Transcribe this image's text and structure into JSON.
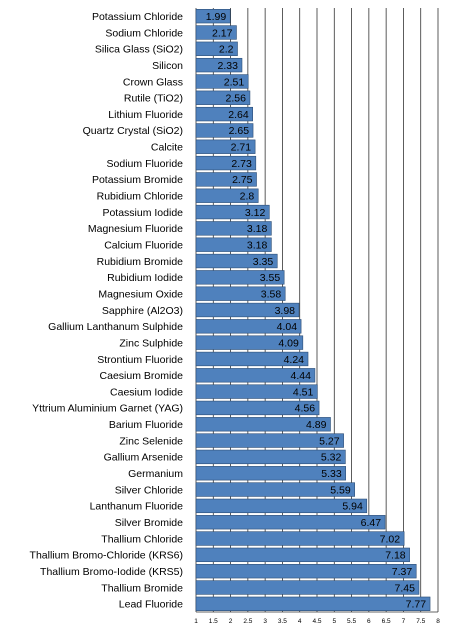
{
  "chart_data": {
    "type": "bar",
    "orientation": "horizontal",
    "categories": [
      "Potassium Chloride",
      "Sodium Chloride",
      "Silica Glass (SiO2)",
      "Silicon",
      "Crown Glass",
      "Rutile (TiO2)",
      "Lithium Fluoride",
      "Quartz Crystal (SiO2)",
      "Calcite",
      "Sodium Fluoride",
      "Potassium Bromide",
      "Rubidium Chloride",
      "Potassium Iodide",
      "Magnesium Fluoride",
      "Calcium Fluoride",
      "Rubidium Bromide",
      "Rubidium Iodide",
      "Magnesium Oxide",
      "Sapphire (Al2O3)",
      "Gallium Lanthanum Sulphide",
      "Zinc Sulphide",
      "Strontium Fluoride",
      "Caesium Bromide",
      "Caesium Iodide",
      "Yttrium Aluminium Garnet (YAG)",
      "Barium Fluoride",
      "Zinc Selenide",
      "Gallium Arsenide",
      "Germanium",
      "Silver Chloride",
      "Lanthanum Fluoride",
      "Silver Bromide",
      "Thallium Chloride",
      "Thallium Bromo-Chloride (KRS6)",
      "Thallium Bromo-Iodide (KRS5)",
      "Thallium Bromide",
      "Lead Fluoride"
    ],
    "values": [
      1.99,
      2.17,
      2.2,
      2.33,
      2.51,
      2.56,
      2.64,
      2.65,
      2.71,
      2.73,
      2.75,
      2.8,
      3.12,
      3.18,
      3.18,
      3.35,
      3.55,
      3.58,
      3.98,
      4.04,
      4.09,
      4.24,
      4.44,
      4.51,
      4.56,
      4.89,
      5.27,
      5.32,
      5.33,
      5.59,
      5.94,
      6.47,
      7.02,
      7.18,
      7.37,
      7.45,
      7.77
    ],
    "value_labels": [
      "1.99",
      "2.17",
      "2.2",
      "2.33",
      "2.51",
      "2.56",
      "2.64",
      "2.65",
      "2.71",
      "2.73",
      "2.75",
      "2.8",
      "3.12",
      "3.18",
      "3.18",
      "3.35",
      "3.55",
      "3.58",
      "3.98",
      "4.04",
      "4.09",
      "4.24",
      "4.44",
      "4.51",
      "4.56",
      "4.89",
      "5.27",
      "5.32",
      "5.33",
      "5.59",
      "5.94",
      "6.47",
      "7.02",
      "7.18",
      "7.37",
      "7.45",
      "7.77"
    ],
    "x_ticks": [
      "1",
      "1.5",
      "2",
      "2.5",
      "3",
      "3.5",
      "4",
      "4.5",
      "5",
      "5.5",
      "6",
      "6.5",
      "7",
      "7.5",
      "8"
    ],
    "xlim": [
      1,
      8
    ],
    "title": "",
    "xlabel": "",
    "ylabel": "",
    "grid": "vertical",
    "legend": "none",
    "bar_color": "#4f81bd",
    "bar_border": "#2c4d75",
    "grid_color": "#333333"
  }
}
